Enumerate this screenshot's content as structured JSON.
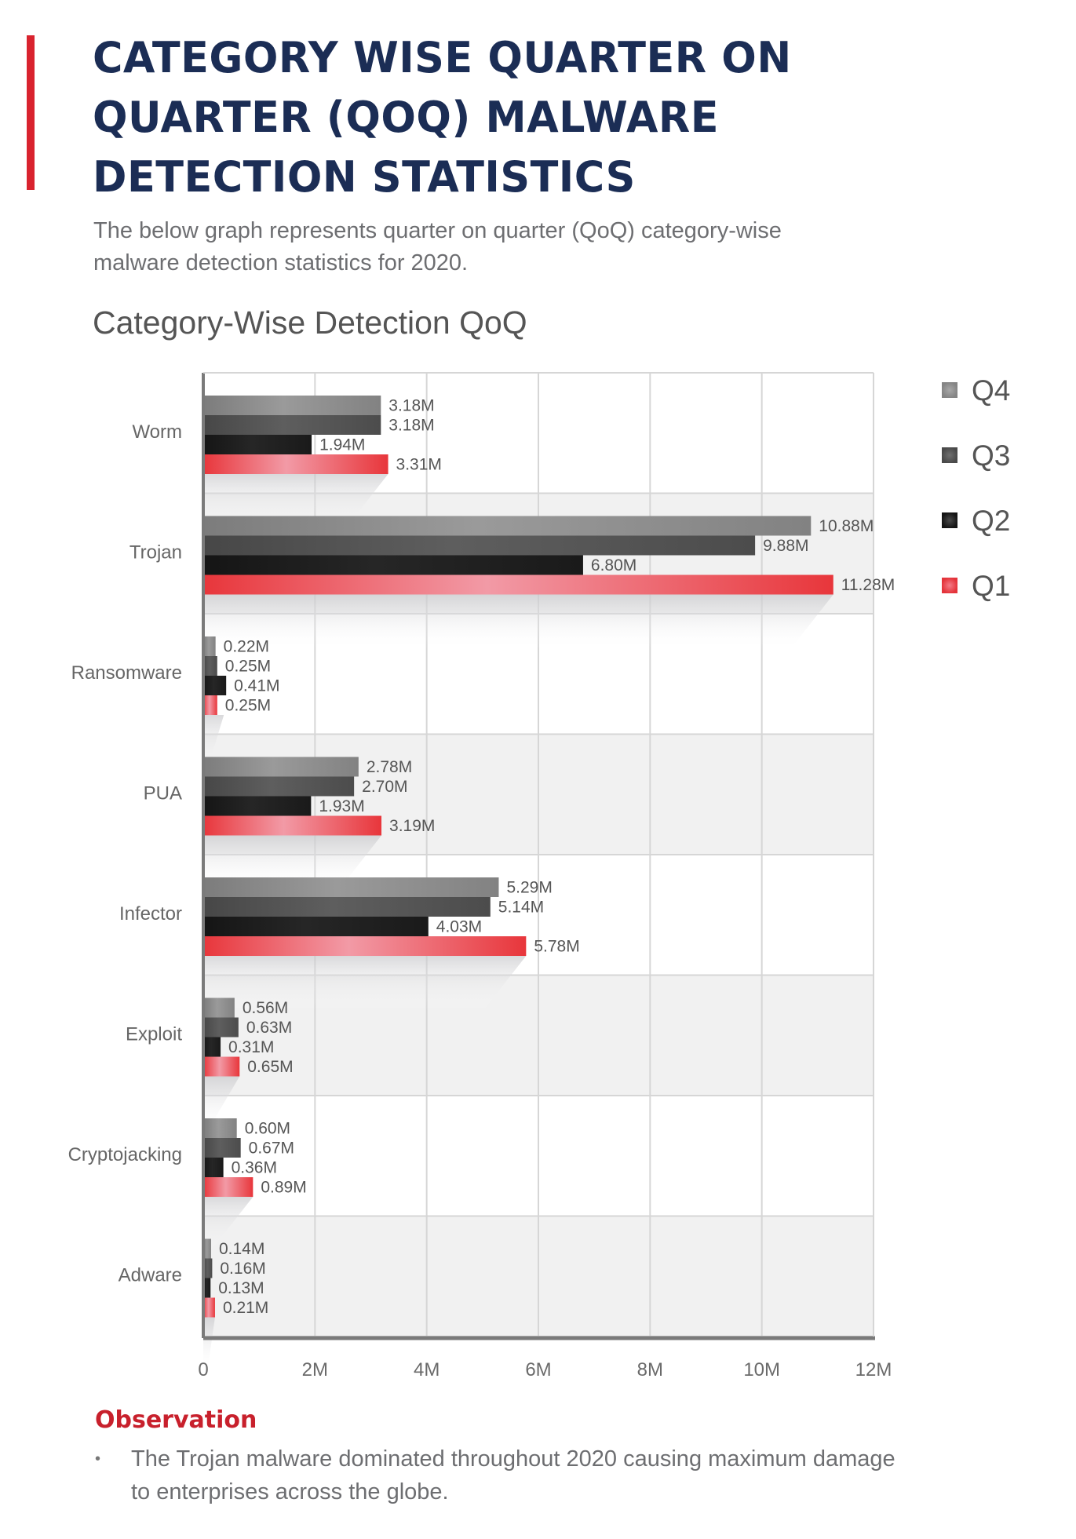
{
  "header": {
    "title_lines": [
      "CATEGORY WISE QUARTER ON",
      "QUARTER (QOQ) MALWARE",
      "DETECTION STATISTICS"
    ],
    "subtitle": "The below graph represents quarter on quarter (QoQ) category-wise malware detection statistics for 2020.",
    "accent_color": "#d9232e",
    "title_color": "#1b2d55"
  },
  "chart_data": {
    "type": "bar",
    "orientation": "horizontal",
    "title": "Category-Wise Detection QoQ",
    "xlabel": "",
    "ylabel": "",
    "categories": [
      "Worm",
      "Trojan",
      "Ransomware",
      "PUA",
      "Infector",
      "Exploit",
      "Cryptojacking",
      "Adware"
    ],
    "series": [
      {
        "name": "Q4",
        "color": "#8c8c8c",
        "values": [
          3.18,
          10.88,
          0.22,
          2.78,
          5.29,
          0.56,
          0.6,
          0.14
        ],
        "labels": [
          "3.18M",
          "10.88M",
          "0.22M",
          "2.78M",
          "5.29M",
          "0.56M",
          "0.60M",
          "0.14M"
        ]
      },
      {
        "name": "Q3",
        "color": "#505050",
        "values": [
          3.18,
          9.88,
          0.25,
          2.7,
          5.14,
          0.63,
          0.67,
          0.16
        ],
        "labels": [
          "3.18M",
          "9.88M",
          "0.25M",
          "2.70M",
          "5.14M",
          "0.63M",
          "0.67M",
          "0.16M"
        ]
      },
      {
        "name": "Q2",
        "color": "#1c1c1c",
        "values": [
          1.94,
          6.8,
          0.41,
          1.93,
          4.03,
          0.31,
          0.36,
          0.13
        ],
        "labels": [
          "1.94M",
          "6.80M",
          "0.41M",
          "1.93M",
          "4.03M",
          "0.31M",
          "0.36M",
          "0.13M"
        ]
      },
      {
        "name": "Q1",
        "color": "#ea3a3e",
        "values": [
          3.31,
          11.28,
          0.25,
          3.19,
          5.78,
          0.65,
          0.89,
          0.21
        ],
        "labels": [
          "3.31M",
          "11.28M",
          "0.25M",
          "3.19M",
          "5.78M",
          "0.65M",
          "0.89M",
          "0.21M"
        ]
      }
    ],
    "legend_order": [
      "Q4",
      "Q3",
      "Q2",
      "Q1"
    ],
    "legend_position": "top-right",
    "xlim": [
      0,
      12
    ],
    "x_unit": "M",
    "x_ticks": [
      0,
      2,
      4,
      6,
      8,
      10,
      12
    ],
    "x_tick_labels": [
      "0",
      "2M",
      "4M",
      "6M",
      "8M",
      "10M",
      "12M"
    ],
    "grid": true,
    "alternating_row_bands": true
  },
  "observation": {
    "heading": "Observation",
    "bullet": "•",
    "items": [
      "The Trojan malware dominated throughout 2020 causing maximum damage to enterprises across the globe."
    ]
  }
}
